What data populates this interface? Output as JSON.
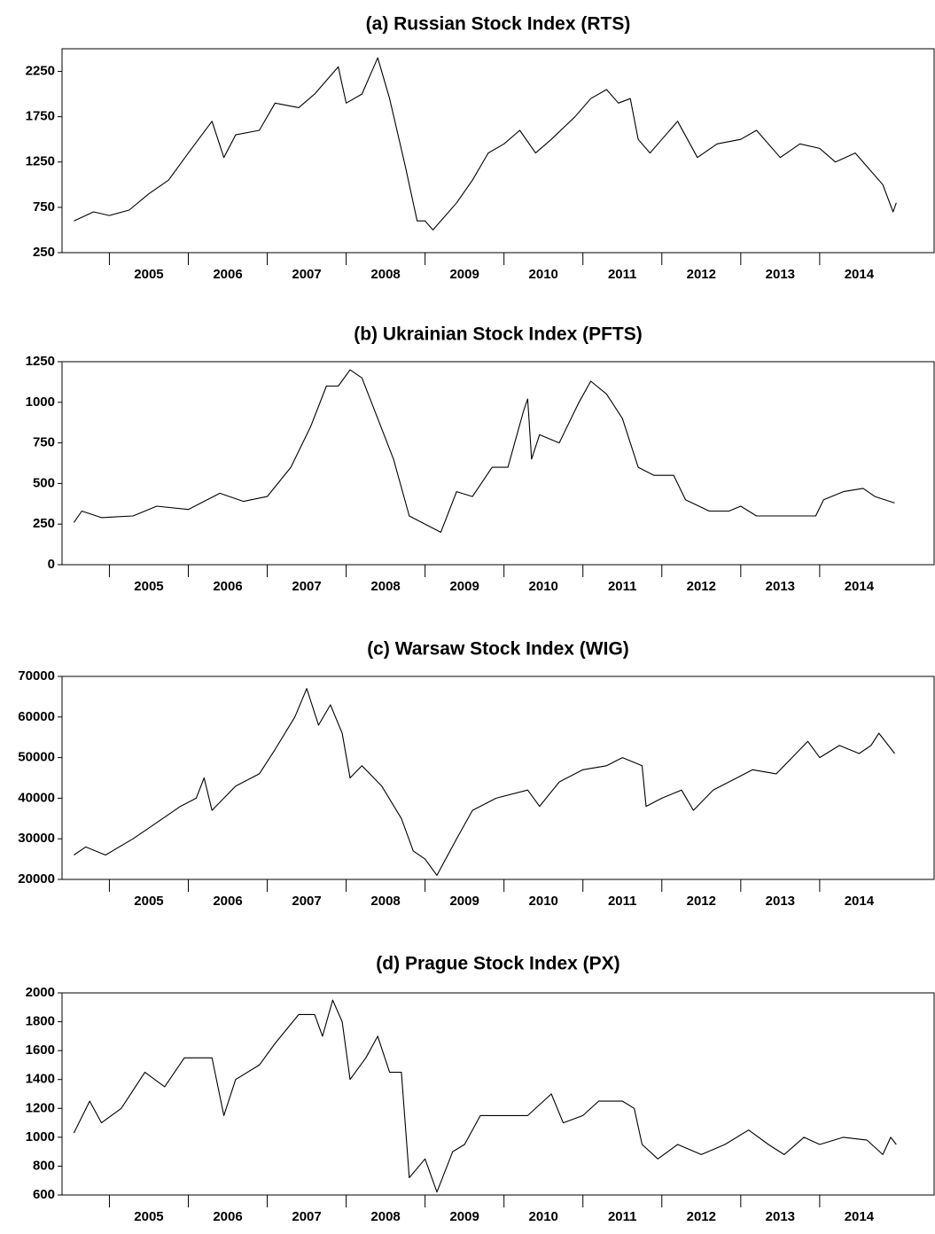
{
  "chart_data": [
    {
      "type": "line",
      "title": "(a) Russian Stock Index (RTS)",
      "color": "#000000",
      "x": [
        2004.55,
        2004.8,
        2005.0,
        2005.25,
        2005.5,
        2005.75,
        2006.0,
        2006.3,
        2006.45,
        2006.6,
        2006.9,
        2007.1,
        2007.4,
        2007.6,
        2007.9,
        2008.0,
        2008.2,
        2008.4,
        2008.55,
        2008.75,
        2008.9,
        2009.0,
        2009.1,
        2009.4,
        2009.6,
        2009.8,
        2010.0,
        2010.2,
        2010.4,
        2010.6,
        2010.9,
        2011.1,
        2011.3,
        2011.45,
        2011.6,
        2011.7,
        2011.85,
        2012.0,
        2012.2,
        2012.45,
        2012.7,
        2013.0,
        2013.2,
        2013.5,
        2013.75,
        2014.0,
        2014.2,
        2014.45,
        2014.6,
        2014.8,
        2014.93,
        2014.97
      ],
      "values": [
        600,
        700,
        660,
        720,
        900,
        1050,
        1350,
        1700,
        1300,
        1550,
        1600,
        1900,
        1850,
        2000,
        2300,
        1900,
        2000,
        2400,
        1950,
        1200,
        600,
        600,
        500,
        800,
        1050,
        1350,
        1450,
        1600,
        1350,
        1500,
        1750,
        1950,
        2050,
        1900,
        1950,
        1500,
        1350,
        1500,
        1700,
        1300,
        1450,
        1500,
        1600,
        1300,
        1450,
        1400,
        1250,
        1350,
        1200,
        1000,
        700,
        800
      ],
      "xlim": [
        2004.4,
        2015.45
      ],
      "ylim": [
        250,
        2500
      ],
      "yticks": [
        250,
        750,
        1250,
        1750,
        2250
      ],
      "xticks": [
        {
          "value": 2005,
          "label": "2005"
        },
        {
          "value": 2006,
          "label": "2006"
        },
        {
          "value": 2007,
          "label": "2007"
        },
        {
          "value": 2008,
          "label": "2008"
        },
        {
          "value": 2009,
          "label": "2009"
        },
        {
          "value": 2010,
          "label": "2010"
        },
        {
          "value": 2011,
          "label": "2011"
        },
        {
          "value": 2012,
          "label": "2012"
        },
        {
          "value": 2013,
          "label": "2013"
        },
        {
          "value": 2014,
          "label": "2014"
        }
      ]
    },
    {
      "type": "line",
      "title": "(b) Ukrainian Stock Index (PFTS)",
      "color": "#000000",
      "x": [
        2004.55,
        2004.65,
        2004.9,
        2005.3,
        2005.6,
        2006.0,
        2006.4,
        2006.7,
        2007.0,
        2007.3,
        2007.55,
        2007.75,
        2007.9,
        2008.05,
        2008.2,
        2008.4,
        2008.6,
        2008.8,
        2009.0,
        2009.2,
        2009.4,
        2009.6,
        2009.85,
        2010.05,
        2010.25,
        2010.3,
        2010.35,
        2010.45,
        2010.7,
        2010.95,
        2011.1,
        2011.3,
        2011.5,
        2011.7,
        2011.9,
        2012.15,
        2012.3,
        2012.6,
        2012.85,
        2013.0,
        2013.2,
        2013.6,
        2013.95,
        2014.05,
        2014.3,
        2014.55,
        2014.7,
        2014.95
      ],
      "values": [
        260,
        330,
        290,
        300,
        360,
        340,
        440,
        390,
        420,
        600,
        850,
        1100,
        1100,
        1200,
        1150,
        900,
        650,
        300,
        250,
        200,
        450,
        420,
        600,
        600,
        950,
        1020,
        650,
        800,
        750,
        1000,
        1130,
        1050,
        900,
        600,
        550,
        550,
        400,
        330,
        330,
        360,
        300,
        300,
        300,
        400,
        450,
        470,
        420,
        380
      ],
      "xlim": [
        2004.4,
        2015.45
      ],
      "ylim": [
        0,
        1250
      ],
      "yticks": [
        0,
        250,
        500,
        750,
        1000,
        1250
      ],
      "xticks": [
        {
          "value": 2005,
          "label": "2005"
        },
        {
          "value": 2006,
          "label": "2006"
        },
        {
          "value": 2007,
          "label": "2007"
        },
        {
          "value": 2008,
          "label": "2008"
        },
        {
          "value": 2009,
          "label": "2009"
        },
        {
          "value": 2010,
          "label": "2010"
        },
        {
          "value": 2011,
          "label": "2011"
        },
        {
          "value": 2012,
          "label": "2012"
        },
        {
          "value": 2013,
          "label": "2013"
        },
        {
          "value": 2014,
          "label": "2014"
        }
      ]
    },
    {
      "type": "line",
      "title": "(c) Warsaw Stock Index (WIG)",
      "color": "#000000",
      "x": [
        2004.55,
        2004.7,
        2004.95,
        2005.3,
        2005.6,
        2005.9,
        2006.1,
        2006.2,
        2006.3,
        2006.6,
        2006.9,
        2007.1,
        2007.35,
        2007.5,
        2007.65,
        2007.8,
        2007.95,
        2008.05,
        2008.2,
        2008.45,
        2008.7,
        2008.85,
        2009.0,
        2009.15,
        2009.4,
        2009.6,
        2009.9,
        2010.3,
        2010.45,
        2010.7,
        2011.0,
        2011.3,
        2011.5,
        2011.75,
        2011.8,
        2012.0,
        2012.25,
        2012.4,
        2012.65,
        2012.95,
        2013.15,
        2013.45,
        2013.65,
        2013.85,
        2014.0,
        2014.25,
        2014.5,
        2014.65,
        2014.75,
        2014.95
      ],
      "values": [
        26000,
        28000,
        26000,
        30000,
        34000,
        38000,
        40000,
        45000,
        37000,
        43000,
        46000,
        52000,
        60000,
        67000,
        58000,
        63000,
        56000,
        45000,
        48000,
        43000,
        35000,
        27000,
        25000,
        21000,
        30000,
        37000,
        40000,
        42000,
        38000,
        44000,
        47000,
        48000,
        50000,
        48000,
        38000,
        40000,
        42000,
        37000,
        42000,
        45000,
        47000,
        46000,
        50000,
        54000,
        50000,
        53000,
        51000,
        53000,
        56000,
        51000
      ],
      "xlim": [
        2004.4,
        2015.45
      ],
      "ylim": [
        20000,
        70000
      ],
      "yticks": [
        20000,
        30000,
        40000,
        50000,
        60000,
        70000
      ],
      "xticks": [
        {
          "value": 2005,
          "label": "2005"
        },
        {
          "value": 2006,
          "label": "2006"
        },
        {
          "value": 2007,
          "label": "2007"
        },
        {
          "value": 2008,
          "label": "2008"
        },
        {
          "value": 2009,
          "label": "2009"
        },
        {
          "value": 2010,
          "label": "2010"
        },
        {
          "value": 2011,
          "label": "2011"
        },
        {
          "value": 2012,
          "label": "2012"
        },
        {
          "value": 2013,
          "label": "2013"
        },
        {
          "value": 2014,
          "label": "2014"
        }
      ]
    },
    {
      "type": "line",
      "title": "(d) Prague Stock Index (PX)",
      "color": "#000000",
      "x": [
        2004.55,
        2004.75,
        2004.9,
        2005.15,
        2005.45,
        2005.7,
        2005.95,
        2006.3,
        2006.45,
        2006.6,
        2006.9,
        2007.1,
        2007.4,
        2007.6,
        2007.7,
        2007.83,
        2007.95,
        2008.05,
        2008.25,
        2008.4,
        2008.55,
        2008.7,
        2008.8,
        2009.0,
        2009.15,
        2009.35,
        2009.5,
        2009.7,
        2010.0,
        2010.3,
        2010.6,
        2010.75,
        2011.0,
        2011.2,
        2011.5,
        2011.65,
        2011.75,
        2011.95,
        2012.2,
        2012.5,
        2012.8,
        2013.1,
        2013.35,
        2013.55,
        2013.8,
        2014.0,
        2014.3,
        2014.6,
        2014.8,
        2014.9,
        2014.97
      ],
      "values": [
        1030,
        1250,
        1100,
        1200,
        1450,
        1350,
        1550,
        1550,
        1150,
        1400,
        1500,
        1650,
        1850,
        1850,
        1700,
        1950,
        1800,
        1400,
        1550,
        1700,
        1450,
        1450,
        720,
        850,
        620,
        900,
        950,
        1150,
        1150,
        1150,
        1300,
        1100,
        1150,
        1250,
        1250,
        1200,
        950,
        850,
        950,
        880,
        950,
        1050,
        950,
        880,
        1000,
        950,
        1000,
        980,
        880,
        1000,
        950
      ],
      "xlim": [
        2004.4,
        2015.45
      ],
      "ylim": [
        600,
        2000
      ],
      "yticks": [
        600,
        800,
        1000,
        1200,
        1400,
        1600,
        1800,
        2000
      ],
      "xticks": [
        {
          "value": 2005,
          "label": "2005"
        },
        {
          "value": 2006,
          "label": "2006"
        },
        {
          "value": 2007,
          "label": "2007"
        },
        {
          "value": 2008,
          "label": "2008"
        },
        {
          "value": 2009,
          "label": "2009"
        },
        {
          "value": 2010,
          "label": "2010"
        },
        {
          "value": 2011,
          "label": "2011"
        },
        {
          "value": 2012,
          "label": "2012"
        },
        {
          "value": 2013,
          "label": "2013"
        },
        {
          "value": 2014,
          "label": "2014"
        }
      ]
    }
  ]
}
